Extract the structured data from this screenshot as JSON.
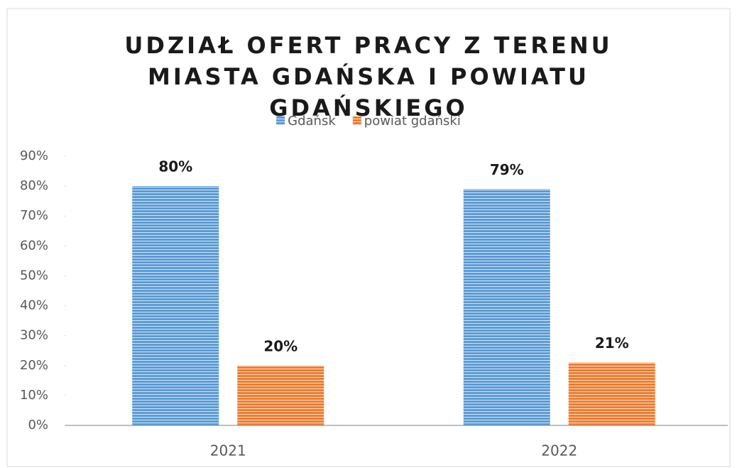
{
  "chart_data": {
    "type": "bar",
    "title": "UDZIAŁ OFERT PRACY Z TERENU MIASTA GDAŃSKA I POWIATU GDAŃSKIEGO",
    "categories": [
      "2021",
      "2022"
    ],
    "series": [
      {
        "name": "Gdańsk",
        "color": "#5b9bd5",
        "values": [
          80,
          79
        ],
        "value_labels": [
          "80%",
          "79%"
        ]
      },
      {
        "name": "powiat gdański",
        "color": "#ed7d31",
        "values": [
          20,
          21
        ],
        "value_labels": [
          "20%",
          "21%"
        ]
      }
    ],
    "ylim": [
      0,
      90
    ],
    "yticks": [
      {
        "value": 0,
        "label": "0%"
      },
      {
        "value": 10,
        "label": "10%"
      },
      {
        "value": 20,
        "label": "20%"
      },
      {
        "value": 30,
        "label": "30%"
      },
      {
        "value": 40,
        "label": "40%"
      },
      {
        "value": 50,
        "label": "50%"
      },
      {
        "value": 60,
        "label": "60%"
      },
      {
        "value": 70,
        "label": "70%"
      },
      {
        "value": 80,
        "label": "80%"
      },
      {
        "value": 90,
        "label": "90%"
      }
    ],
    "legend": "top"
  }
}
